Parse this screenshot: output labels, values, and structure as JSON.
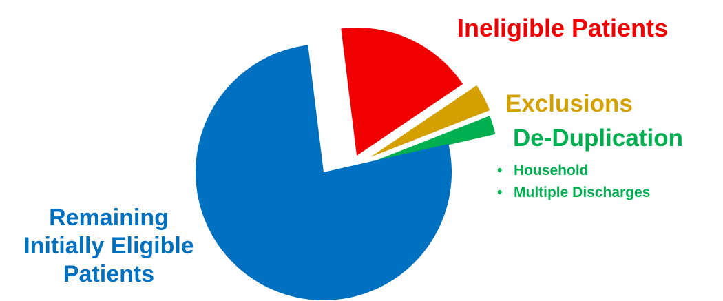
{
  "colors": {
    "remaining": "#0070C0",
    "ineligible": "#F00000",
    "exclusions": "#D4A000",
    "dedup": "#00B050"
  },
  "chart_data": {
    "type": "pie",
    "title": "",
    "slices": [
      {
        "key": "ineligible",
        "label": "Ineligible Patients",
        "value": 17.5,
        "exploded": true
      },
      {
        "key": "exclusions",
        "label": "Exclusions",
        "value": 3.5,
        "exploded": true
      },
      {
        "key": "dedup",
        "label": "De-Duplication",
        "value": 2.4,
        "exploded": true,
        "sub_items": [
          "Household",
          "Multiple Discharges"
        ]
      },
      {
        "key": "remaining",
        "label_lines": [
          "Remaining",
          "Initially Eligible",
          "Patients"
        ],
        "value": 76.6,
        "exploded": false
      }
    ],
    "labels": {
      "remaining": [
        "Remaining",
        "Initially Eligible",
        "Patients"
      ],
      "ineligible": "Ineligible Patients",
      "exclusions": "Exclusions",
      "dedup": "De-Duplication",
      "dedup_items": [
        "Household",
        "Multiple Discharges"
      ]
    }
  }
}
